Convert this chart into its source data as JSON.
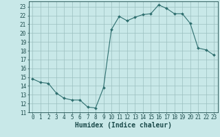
{
  "x": [
    0,
    1,
    2,
    3,
    4,
    5,
    6,
    7,
    8,
    9,
    10,
    11,
    12,
    13,
    14,
    15,
    16,
    17,
    18,
    19,
    20,
    21,
    22,
    23
  ],
  "y": [
    14.8,
    14.4,
    14.3,
    13.2,
    12.6,
    12.4,
    12.4,
    11.6,
    11.5,
    13.8,
    20.4,
    21.9,
    21.4,
    21.8,
    22.1,
    22.2,
    23.2,
    22.8,
    22.2,
    22.2,
    21.1,
    18.3,
    18.1,
    17.5
  ],
  "line_color": "#2d6e6e",
  "marker": "D",
  "marker_size": 2.0,
  "bg_color": "#c8e8e8",
  "grid_color": "#9bbfbf",
  "xlabel": "Humidex (Indice chaleur)",
  "xlim": [
    -0.5,
    23.5
  ],
  "ylim": [
    11,
    23.6
  ],
  "yticks": [
    11,
    12,
    13,
    14,
    15,
    16,
    17,
    18,
    19,
    20,
    21,
    22,
    23
  ],
  "xticks": [
    0,
    1,
    2,
    3,
    4,
    5,
    6,
    7,
    8,
    9,
    10,
    11,
    12,
    13,
    14,
    15,
    16,
    17,
    18,
    19,
    20,
    21,
    22,
    23
  ],
  "tick_fontsize": 5.5,
  "xlabel_fontsize": 7.0,
  "label_color": "#1a4a4a"
}
